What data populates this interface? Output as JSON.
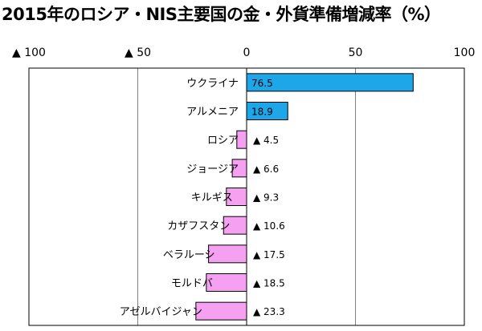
{
  "chart_data": {
    "type": "bar",
    "title": "2015年のロシア・NIS主要国の金・外貨準備増減率（%）",
    "orientation": "horizontal",
    "xlim": [
      -100,
      100
    ],
    "xticks": [
      {
        "value": -100,
        "label": "▲ 100"
      },
      {
        "value": -50,
        "label": "▲ 50"
      },
      {
        "value": 0,
        "label": "0"
      },
      {
        "value": 50,
        "label": "50"
      },
      {
        "value": 100,
        "label": "100"
      }
    ],
    "categories": [
      "ウクライナ",
      "アルメニア",
      "ロシア",
      "ジョージア",
      "キルギス",
      "カザフスタン",
      "ベラルーシ",
      "モルドバ",
      "アゼルバイジャン"
    ],
    "values": [
      76.5,
      18.9,
      -4.5,
      -6.6,
      -9.3,
      -10.6,
      -17.5,
      -18.5,
      -23.3
    ],
    "value_labels": [
      "76.5",
      "18.9",
      "▲ 4.5",
      "▲ 6.6",
      "▲ 9.3",
      "▲ 10.6",
      "▲ 17.5",
      "▲ 18.5",
      "▲ 23.3"
    ],
    "colors": {
      "positive": "#1ea7e8",
      "negative": "#f5a0f0",
      "grid": "#808080",
      "border": "#000000"
    },
    "grid": true
  }
}
